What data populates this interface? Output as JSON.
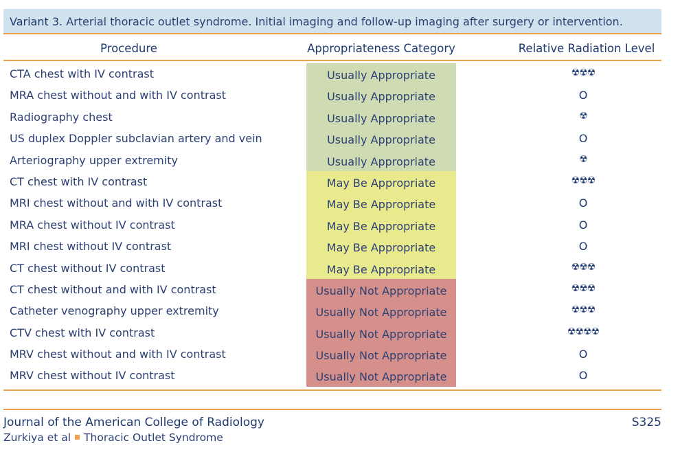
{
  "variant": {
    "label": "Variant 3.",
    "description": "Arterial thoracic outlet syndrome. Initial imaging and follow-up imaging after surgery or intervention."
  },
  "headers": {
    "procedure": "Procedure",
    "category": "Appropriateness Category",
    "radiation": "Relative Radiation Level"
  },
  "rows": [
    {
      "procedure": "CTA chest with IV contrast",
      "category": "Usually Appropriate",
      "color": "green",
      "radiation": "☢☢☢"
    },
    {
      "procedure": "MRA chest without and with IV contrast",
      "category": "Usually Appropriate",
      "color": "green",
      "radiation": "O"
    },
    {
      "procedure": "Radiography chest",
      "category": "Usually Appropriate",
      "color": "green",
      "radiation": "☢"
    },
    {
      "procedure": "US duplex Doppler subclavian artery and vein",
      "category": "Usually Appropriate",
      "color": "green",
      "radiation": "O"
    },
    {
      "procedure": "Arteriography upper extremity",
      "category": "Usually Appropriate",
      "color": "green",
      "radiation": "☢"
    },
    {
      "procedure": "CT chest with IV contrast",
      "category": "May Be Appropriate",
      "color": "yellow",
      "radiation": "☢☢☢"
    },
    {
      "procedure": "MRI chest without and with IV contrast",
      "category": "May Be Appropriate",
      "color": "yellow",
      "radiation": "O"
    },
    {
      "procedure": "MRA chest without IV contrast",
      "category": "May Be Appropriate",
      "color": "yellow",
      "radiation": "O"
    },
    {
      "procedure": "MRI chest without IV contrast",
      "category": "May Be Appropriate",
      "color": "yellow",
      "radiation": "O"
    },
    {
      "procedure": "CT chest without IV contrast",
      "category": "May Be Appropriate",
      "color": "yellow",
      "radiation": "☢☢☢"
    },
    {
      "procedure": "CT chest without and with IV contrast",
      "category": "Usually Not Appropriate",
      "color": "red",
      "radiation": "☢☢☢"
    },
    {
      "procedure": "Catheter venography upper extremity",
      "category": "Usually Not Appropriate",
      "color": "red",
      "radiation": "☢☢☢"
    },
    {
      "procedure": "CTV chest with IV contrast",
      "category": "Usually Not Appropriate",
      "color": "red",
      "radiation": "☢☢☢☢"
    },
    {
      "procedure": "MRV chest without and with IV contrast",
      "category": "Usually Not Appropriate",
      "color": "red",
      "radiation": "O"
    },
    {
      "procedure": "MRV chest without IV contrast",
      "category": "Usually Not Appropriate",
      "color": "red",
      "radiation": "O"
    }
  ],
  "footer": {
    "journal": "Journal of the American College of Radiology",
    "page": "S325",
    "authors": "Zurkiya et al",
    "topic": "Thoracic Outlet Syndrome"
  }
}
